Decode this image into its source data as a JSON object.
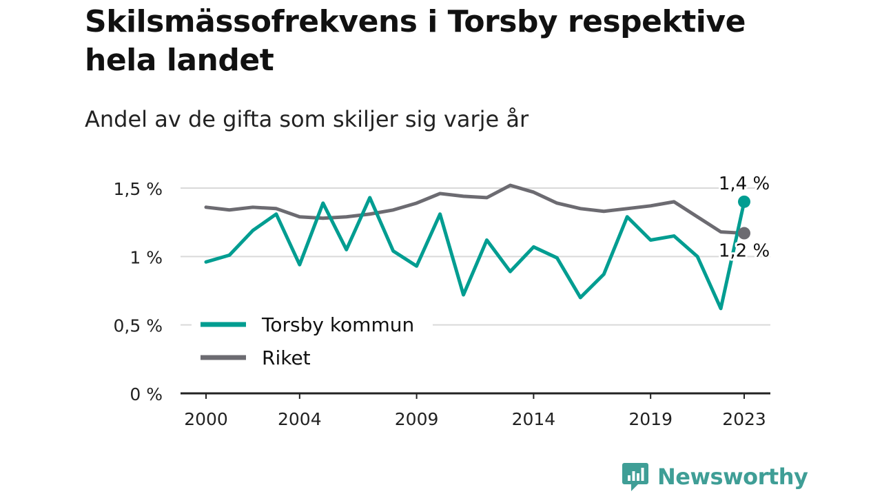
{
  "header": {
    "title": "Skilsmässofrekvens i Torsby respektive hela landet",
    "subtitle": "Andel av de gifta som skiljer sig varje år"
  },
  "brand": {
    "name": "Newsworthy"
  },
  "colors": {
    "torsby": "#009d91",
    "riket": "#6c6b71",
    "grid": "#d9d9d9",
    "axis": "#222222",
    "brand": "#3f9e96"
  },
  "chart_data": {
    "type": "line",
    "title": "Skilsmässofrekvens i Torsby respektive hela landet",
    "subtitle": "Andel av de gifta som skiljer sig varje år",
    "x": [
      2000,
      2001,
      2002,
      2003,
      2004,
      2005,
      2006,
      2007,
      2008,
      2009,
      2010,
      2011,
      2012,
      2013,
      2014,
      2015,
      2016,
      2017,
      2018,
      2019,
      2020,
      2021,
      2022,
      2023
    ],
    "xticks": [
      2000,
      2004,
      2009,
      2014,
      2019,
      2023
    ],
    "xtick_labels": [
      "2000",
      "2004",
      "2009",
      "2014",
      "2019",
      "2023"
    ],
    "yticks": [
      0,
      0.5,
      1,
      1.5
    ],
    "ytick_labels": [
      "0 %",
      "0,5 %",
      "1 %",
      "1,5 %"
    ],
    "ylim": [
      0,
      1.5
    ],
    "xlim": [
      1999,
      2024
    ],
    "grid": true,
    "legend": "bottom-left",
    "series": [
      {
        "name": "Torsby kommun",
        "key": "torsby",
        "values": [
          0.96,
          1.01,
          1.19,
          1.31,
          0.94,
          1.39,
          1.05,
          1.43,
          1.04,
          0.93,
          1.31,
          0.72,
          1.12,
          0.89,
          1.07,
          0.99,
          0.7,
          0.87,
          1.29,
          1.12,
          1.15,
          1.0,
          0.62,
          1.4
        ],
        "end_label": "1,4 %"
      },
      {
        "name": "Riket",
        "key": "riket",
        "values": [
          1.36,
          1.34,
          1.36,
          1.35,
          1.29,
          1.28,
          1.29,
          1.31,
          1.34,
          1.39,
          1.46,
          1.44,
          1.43,
          1.52,
          1.47,
          1.39,
          1.35,
          1.33,
          1.35,
          1.37,
          1.4,
          1.29,
          1.18,
          1.17
        ],
        "end_label": "1,2 %"
      }
    ]
  }
}
